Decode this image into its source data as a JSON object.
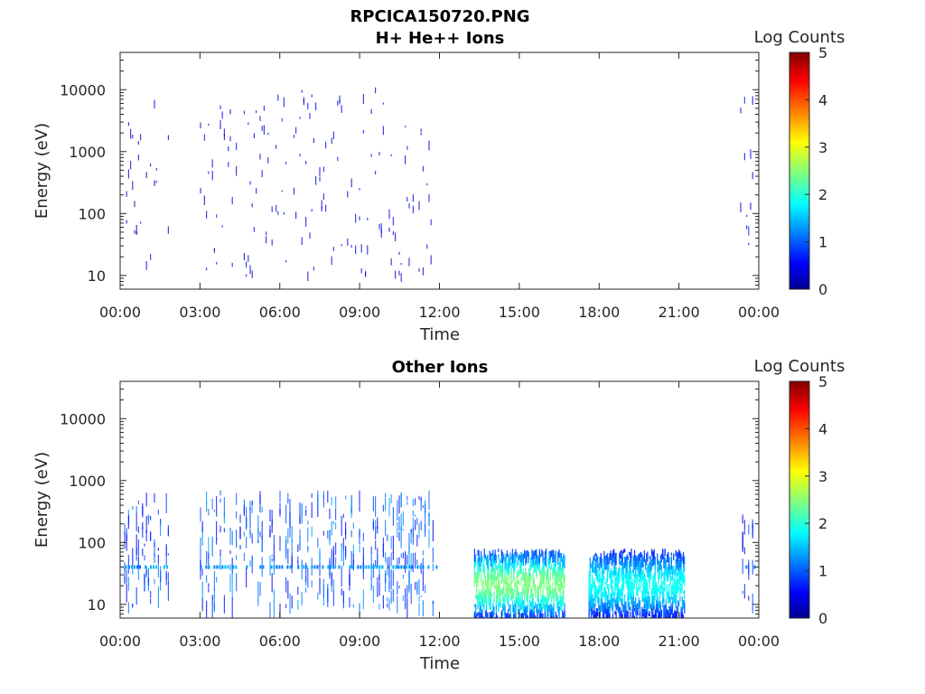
{
  "figure": {
    "filename": "RPCICA150720.PNG"
  },
  "colorbar": {
    "label": "Log Counts",
    "min": 0,
    "max": 5,
    "ticks": [
      "0",
      "1",
      "2",
      "3",
      "4",
      "5"
    ],
    "colormap": "jet"
  },
  "chart_data": [
    {
      "type": "heatmap",
      "title": "H+ He++ Ions",
      "xlabel": "Time",
      "ylabel": "Energy (eV)",
      "x_ticks": [
        "00:00",
        "03:00",
        "06:00",
        "09:00",
        "12:00",
        "15:00",
        "18:00",
        "21:00",
        "00:00"
      ],
      "xlim_hours": [
        0,
        24
      ],
      "y_ticks": [
        "10",
        "100",
        "1000",
        "10000"
      ],
      "y_scale": "log",
      "ylim": [
        6,
        40000
      ],
      "clim": [
        0,
        5
      ],
      "activity": [
        {
          "start_hour": 0.0,
          "end_hour": 1.8,
          "e_min": 10,
          "e_max": 10000,
          "level": 0.4,
          "note": "sparse low counts"
        },
        {
          "start_hour": 3.0,
          "end_hour": 11.7,
          "e_min": 10,
          "e_max": 11000,
          "level": 0.5,
          "note": "sparse low counts, strongest below 100 eV"
        },
        {
          "start_hour": 23.3,
          "end_hour": 24.0,
          "e_min": 10,
          "e_max": 10000,
          "level": 0.6,
          "note": "sparse low counts"
        }
      ]
    },
    {
      "type": "heatmap",
      "title": "Other Ions",
      "xlabel": "Time",
      "ylabel": "Energy (eV)",
      "x_ticks": [
        "00:00",
        "03:00",
        "06:00",
        "09:00",
        "12:00",
        "15:00",
        "18:00",
        "21:00",
        "00:00"
      ],
      "xlim_hours": [
        0,
        24
      ],
      "y_ticks": [
        "10",
        "100",
        "1000",
        "10000"
      ],
      "y_scale": "log",
      "ylim": [
        6,
        40000
      ],
      "clim": [
        0,
        5
      ],
      "activity": [
        {
          "start_hour": 0.0,
          "end_hour": 1.8,
          "e_min": 10,
          "e_max": 700,
          "level": 1.0,
          "note": "banded near 40 eV"
        },
        {
          "start_hour": 3.0,
          "end_hour": 11.9,
          "e_min": 10,
          "e_max": 700,
          "level": 1.1,
          "note": "banded near 40 eV"
        },
        {
          "start_hour": 13.3,
          "end_hour": 16.7,
          "e_min": 6,
          "e_max": 80,
          "level": 1.8,
          "note": "dense counts peaking 10-30 eV"
        },
        {
          "start_hour": 17.6,
          "end_hour": 21.2,
          "e_min": 6,
          "e_max": 80,
          "level": 1.4,
          "note": "dense counts"
        },
        {
          "start_hour": 23.3,
          "end_hour": 23.9,
          "e_min": 10,
          "e_max": 300,
          "level": 0.9,
          "note": "sparse"
        }
      ]
    }
  ]
}
